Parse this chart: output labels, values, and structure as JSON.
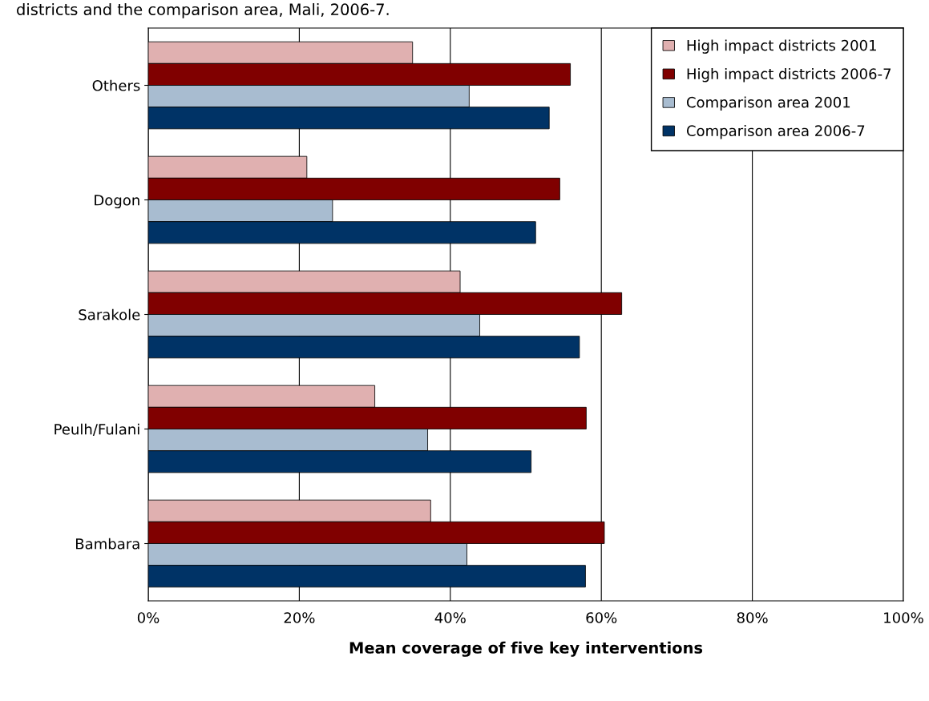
{
  "chart_data": {
    "type": "bar",
    "orientation": "horizontal",
    "title": "districts and the comparison area, Mali, 2006-7.",
    "xlabel": "Mean coverage of five key interventions",
    "categories": [
      "Others",
      "Dogon",
      "Sarakole",
      "Peulh/Fulani",
      "Bambara"
    ],
    "series": [
      {
        "name": "High impact districts 2001",
        "color": "#e0b0b0",
        "values": [
          35.0,
          21.0,
          41.3,
          30.0,
          37.4
        ]
      },
      {
        "name": "High impact districts 2006-7",
        "color": "#800000",
        "values": [
          55.9,
          54.5,
          62.7,
          58.0,
          60.4
        ]
      },
      {
        "name": "Comparison area 2001",
        "color": "#a8bcd0",
        "values": [
          42.5,
          24.4,
          43.9,
          37.0,
          42.2
        ]
      },
      {
        "name": "Comparison area 2006-7",
        "color": "#003366",
        "values": [
          53.1,
          51.3,
          57.1,
          50.7,
          57.9
        ]
      }
    ],
    "xlim": [
      0,
      100
    ],
    "xticks": [
      {
        "value": 0,
        "label": "0%"
      },
      {
        "value": 20,
        "label": "20%"
      },
      {
        "value": 40,
        "label": "40%"
      },
      {
        "value": 60,
        "label": "60%"
      },
      {
        "value": 80,
        "label": "80%"
      },
      {
        "value": 100,
        "label": "100%"
      }
    ],
    "grid": "x",
    "legend": "top right"
  }
}
